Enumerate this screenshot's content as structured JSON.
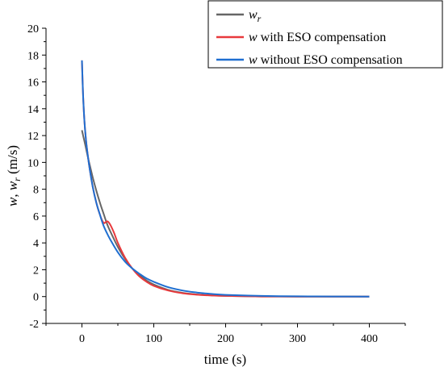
{
  "chart_data": {
    "type": "line",
    "xlabel": "time (s)",
    "ylabel": {
      "prefix": "w",
      "sep": ", ",
      "main": "w",
      "sub": "r",
      "unit": " (m/s)"
    },
    "xlim": [
      -50,
      450
    ],
    "ylim": [
      -2,
      20
    ],
    "xticks": [
      0,
      100,
      200,
      300,
      400
    ],
    "yticks": [
      -2,
      0,
      2,
      4,
      6,
      8,
      10,
      12,
      14,
      16,
      18,
      20
    ],
    "grid": false,
    "legend_position": "top-right",
    "series": [
      {
        "key": "wr",
        "legend": {
          "var": "w",
          "sub": "r",
          "text": ""
        },
        "color": "#666666",
        "x": [
          0,
          5,
          10,
          15,
          20,
          25,
          30,
          35,
          40,
          50,
          60,
          70,
          80,
          90,
          100,
          120,
          140,
          160,
          180,
          200,
          250,
          300,
          350,
          400
        ],
        "y": [
          12.4,
          11.2,
          10.0,
          8.9,
          7.9,
          7.0,
          6.2,
          5.4,
          4.8,
          3.7,
          2.8,
          2.1,
          1.6,
          1.2,
          0.9,
          0.5,
          0.28,
          0.16,
          0.09,
          0.05,
          0.01,
          0.0,
          0.0,
          0.0
        ]
      },
      {
        "key": "w_eso",
        "legend": {
          "var": "w",
          "sub": "",
          "text": " with ESO compensation"
        },
        "color": "#e8393c",
        "x": [
          0,
          2,
          5,
          10,
          15,
          20,
          25,
          30,
          33,
          36,
          40,
          45,
          50,
          60,
          70,
          80,
          90,
          100,
          120,
          140,
          160,
          180,
          200,
          250,
          300,
          350,
          400
        ],
        "y": [
          17.6,
          14.5,
          12.0,
          9.8,
          8.2,
          7.0,
          6.1,
          5.5,
          5.55,
          5.6,
          5.3,
          4.7,
          4.0,
          2.9,
          2.1,
          1.5,
          1.1,
          0.8,
          0.45,
          0.25,
          0.14,
          0.08,
          0.05,
          0.01,
          0.0,
          0.0,
          0.0
        ]
      },
      {
        "key": "w_no_eso",
        "legend": {
          "var": "w",
          "sub": "",
          "text": " without ESO compensation"
        },
        "color": "#1f6fd1",
        "x": [
          0,
          2,
          5,
          10,
          15,
          20,
          25,
          30,
          35,
          40,
          50,
          60,
          70,
          80,
          90,
          100,
          120,
          140,
          160,
          180,
          200,
          250,
          300,
          350,
          400
        ],
        "y": [
          17.6,
          14.5,
          12.0,
          9.8,
          8.2,
          7.0,
          6.1,
          5.3,
          4.7,
          4.2,
          3.3,
          2.6,
          2.1,
          1.7,
          1.35,
          1.1,
          0.7,
          0.45,
          0.3,
          0.2,
          0.13,
          0.05,
          0.02,
          0.01,
          0.0
        ]
      }
    ]
  }
}
